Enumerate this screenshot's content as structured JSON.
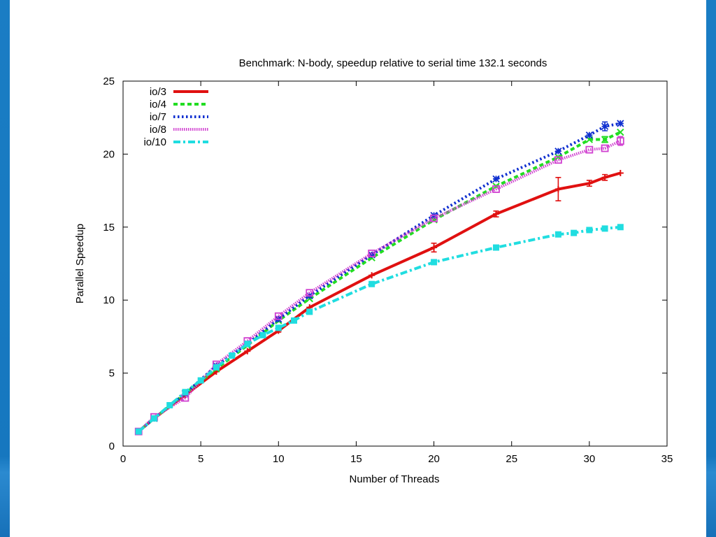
{
  "colors": {
    "frame_band": "#1a7dc4",
    "background": "#ffffff"
  },
  "chart_data": {
    "type": "line",
    "title": "Benchmark: N-body, speedup relative to serial time 132.1 seconds",
    "xlabel": "Number of Threads",
    "ylabel": "Parallel Speedup",
    "xlim": [
      0,
      35
    ],
    "ylim": [
      0,
      25
    ],
    "xticks": [
      0,
      5,
      10,
      15,
      20,
      25,
      30,
      35
    ],
    "yticks": [
      0,
      5,
      10,
      15,
      20,
      25
    ],
    "legend_position": "top-left",
    "grid": false,
    "series": [
      {
        "name": "io/3",
        "color": "#e01010",
        "dash": "solid",
        "marker": "plus",
        "x": [
          1,
          2,
          4,
          6,
          8,
          10,
          12,
          16,
          20,
          24,
          28,
          30,
          31,
          32
        ],
        "y": [
          1.0,
          1.9,
          3.5,
          5.1,
          6.5,
          7.9,
          9.5,
          11.7,
          13.6,
          15.9,
          17.6,
          18.0,
          18.4,
          18.7
        ],
        "err": [
          0,
          0,
          0,
          0,
          0,
          0.1,
          0,
          0,
          0.3,
          0.2,
          0.8,
          0.2,
          0.2,
          0
        ]
      },
      {
        "name": "io/4",
        "color": "#22dd22",
        "dash": "dashed",
        "marker": "x",
        "x": [
          1,
          2,
          4,
          6,
          8,
          10,
          12,
          16,
          20,
          24,
          28,
          30,
          31,
          32
        ],
        "y": [
          1.0,
          1.9,
          3.6,
          5.3,
          6.9,
          8.6,
          10.1,
          12.9,
          15.5,
          17.8,
          19.8,
          21.0,
          21.0,
          21.5
        ],
        "err": [
          0,
          0,
          0,
          0,
          0,
          0,
          0,
          0,
          0,
          0,
          0,
          0,
          0.2,
          0
        ]
      },
      {
        "name": "io/7",
        "color": "#1030d0",
        "dash": "dotted",
        "marker": "star",
        "x": [
          1,
          2,
          4,
          6,
          8,
          10,
          12,
          16,
          20,
          24,
          28,
          30,
          31,
          32
        ],
        "y": [
          1.0,
          1.9,
          3.6,
          5.5,
          7.0,
          8.7,
          10.3,
          13.1,
          15.8,
          18.3,
          20.2,
          21.3,
          21.9,
          22.1
        ],
        "err": [
          0,
          0,
          0,
          0,
          0,
          0,
          0,
          0,
          0,
          0,
          0,
          0,
          0.3,
          0
        ]
      },
      {
        "name": "io/8",
        "color": "#d040d0",
        "dash": "dense-dotted",
        "marker": "square",
        "x": [
          1,
          2,
          4,
          6,
          8,
          10,
          12,
          16,
          20,
          24,
          28,
          30,
          31,
          32
        ],
        "y": [
          1.0,
          2.0,
          3.3,
          5.6,
          7.2,
          8.9,
          10.5,
          13.2,
          15.6,
          17.6,
          19.6,
          20.3,
          20.4,
          20.9
        ],
        "err": [
          0,
          0,
          0,
          0,
          0,
          0,
          0,
          0,
          0,
          0,
          0,
          0,
          0,
          0.3
        ]
      },
      {
        "name": "io/10",
        "color": "#20dde0",
        "dash": "dash-dot",
        "marker": "filled-square",
        "x": [
          1,
          2,
          3,
          4,
          5,
          6,
          7,
          8,
          9,
          10,
          11,
          12,
          16,
          20,
          24,
          28,
          29,
          30,
          31,
          32
        ],
        "y": [
          1.0,
          1.9,
          2.8,
          3.7,
          4.5,
          5.4,
          6.2,
          7.0,
          7.6,
          8.1,
          8.6,
          9.2,
          11.1,
          12.6,
          13.6,
          14.5,
          14.6,
          14.8,
          14.9,
          15.0
        ],
        "err": []
      }
    ]
  }
}
